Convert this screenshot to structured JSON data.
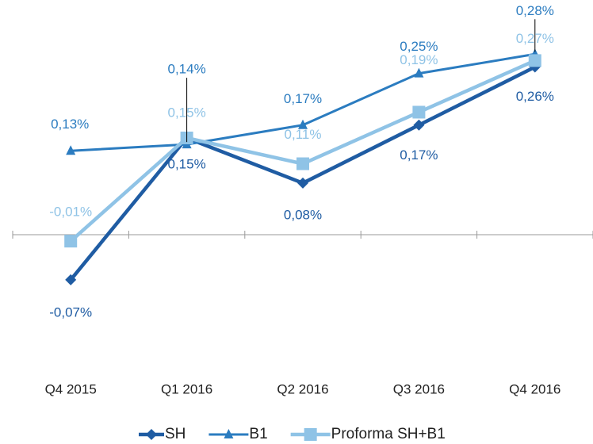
{
  "chart_data": {
    "type": "line",
    "categories": [
      "Q4 2015",
      "Q1 2016",
      "Q2 2016",
      "Q3 2016",
      "Q4 2016"
    ],
    "series": [
      {
        "name": "SH",
        "color": "#1f5ca3",
        "marker": "diamond",
        "values": [
          -0.07,
          0.15,
          0.08,
          0.17,
          0.26
        ],
        "value_labels": [
          "-0,07%",
          "0,15%",
          "0,08%",
          "0,17%",
          "0,26%"
        ]
      },
      {
        "name": "B1",
        "color": "#2b7cc0",
        "marker": "triangle",
        "values": [
          0.13,
          0.14,
          0.17,
          0.25,
          0.28
        ],
        "value_labels": [
          "0,13%",
          "0,14%",
          "0,17%",
          "0,25%",
          "0,28%"
        ]
      },
      {
        "name": "Proforma SH+B1",
        "color": "#8fc3e6",
        "marker": "square",
        "values": [
          -0.01,
          0.15,
          0.11,
          0.19,
          0.27
        ],
        "value_labels": [
          "-0,01%",
          "0,15%",
          "0,11%",
          "0,19%",
          "0,27%"
        ]
      }
    ],
    "ylim": [
      -0.15,
      0.3
    ],
    "grid": false,
    "legend": "bottom"
  }
}
